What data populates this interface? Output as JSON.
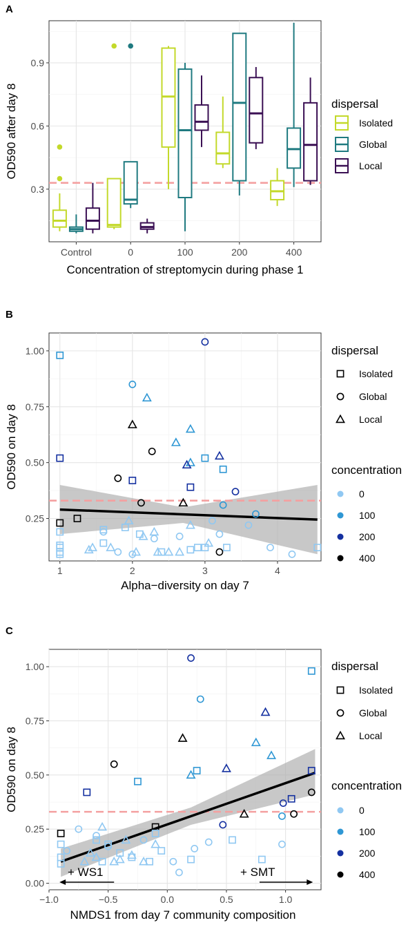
{
  "colors": {
    "dispersal": {
      "Isolated": "#c3d92a",
      "Global": "#1f7a80",
      "Local": "#3a0f53"
    },
    "concentration": {
      "0": "#90c8f2",
      "100": "#2f97d4",
      "200": "#1430a0",
      "400": "#000000"
    },
    "reference_line": "#f4a0a0",
    "ci_band": "#b0b0b0"
  },
  "chart_data": [
    {
      "panel": "A",
      "type": "box",
      "xlabel": "Concentration of streptomycin during phase 1",
      "ylabel": "OD590 after day 8",
      "categories": [
        "Control",
        "0",
        "100",
        "200",
        "400"
      ],
      "ylim": [
        0.05,
        1.1
      ],
      "yticks": [
        0.3,
        0.6,
        0.9
      ],
      "reference_line": 0.33,
      "legend": {
        "title": "dispersal",
        "items": [
          "Isolated",
          "Global",
          "Local"
        ]
      },
      "series": [
        {
          "name": "Isolated",
          "boxes": [
            {
              "category": "Control",
              "min": 0.1,
              "q1": 0.12,
              "median": 0.15,
              "q3": 0.2,
              "max": 0.28,
              "outliers": [
                0.35,
                0.5
              ]
            },
            {
              "category": "0",
              "min": 0.11,
              "q1": 0.12,
              "median": 0.13,
              "q3": 0.35,
              "max": 0.35,
              "outliers": [
                0.98
              ]
            },
            {
              "category": "100",
              "min": 0.3,
              "q1": 0.5,
              "median": 0.74,
              "q3": 0.97,
              "max": 0.98,
              "outliers": []
            },
            {
              "category": "200",
              "min": 0.4,
              "q1": 0.42,
              "median": 0.47,
              "q3": 0.57,
              "max": 0.74,
              "outliers": []
            },
            {
              "category": "400",
              "min": 0.22,
              "q1": 0.25,
              "median": 0.29,
              "q3": 0.34,
              "max": 0.4,
              "outliers": []
            }
          ]
        },
        {
          "name": "Global",
          "boxes": [
            {
              "category": "Control",
              "min": 0.09,
              "q1": 0.1,
              "median": 0.11,
              "q3": 0.12,
              "max": 0.18,
              "outliers": []
            },
            {
              "category": "0",
              "min": 0.21,
              "q1": 0.23,
              "median": 0.25,
              "q3": 0.43,
              "max": 0.43,
              "outliers": [
                0.98
              ]
            },
            {
              "category": "100",
              "min": 0.1,
              "q1": 0.26,
              "median": 0.58,
              "q3": 0.87,
              "max": 0.9,
              "outliers": []
            },
            {
              "category": "200",
              "min": 0.27,
              "q1": 0.34,
              "median": 0.71,
              "q3": 1.04,
              "max": 1.04,
              "outliers": []
            },
            {
              "category": "400",
              "min": 0.31,
              "q1": 0.4,
              "median": 0.49,
              "q3": 0.59,
              "max": 1.09,
              "outliers": []
            }
          ]
        },
        {
          "name": "Local",
          "boxes": [
            {
              "category": "Control",
              "min": 0.09,
              "q1": 0.11,
              "median": 0.15,
              "q3": 0.21,
              "max": 0.33,
              "outliers": []
            },
            {
              "category": "0",
              "min": 0.09,
              "q1": 0.11,
              "median": 0.12,
              "q3": 0.14,
              "max": 0.16,
              "outliers": []
            },
            {
              "category": "100",
              "min": 0.5,
              "q1": 0.58,
              "median": 0.62,
              "q3": 0.7,
              "max": 0.84,
              "outliers": []
            },
            {
              "category": "200",
              "min": 0.49,
              "q1": 0.52,
              "median": 0.66,
              "q3": 0.83,
              "max": 0.88,
              "outliers": []
            },
            {
              "category": "400",
              "min": 0.32,
              "q1": 0.34,
              "median": 0.51,
              "q3": 0.71,
              "max": 0.83,
              "outliers": []
            }
          ]
        }
      ]
    },
    {
      "panel": "B",
      "type": "scatter",
      "xlabel": "Alpha−diversity on day 7",
      "ylabel": "OD590 on day 8",
      "xlim": [
        0.85,
        4.6
      ],
      "ylim": [
        0.06,
        1.08
      ],
      "xticks": [
        1,
        2,
        3,
        4
      ],
      "yticks": [
        "0.25",
        "0.50",
        "0.75",
        "1.00"
      ],
      "reference_line": 0.33,
      "fit": {
        "x0": 1,
        "y0": 0.29,
        "x1": 4.55,
        "y1": 0.245,
        "ci": [
          [
            1,
            0.18,
            0.4
          ],
          [
            2.7,
            0.23,
            0.3
          ],
          [
            4.55,
            0.09,
            0.4
          ]
        ]
      },
      "legend_shape": {
        "title": "dispersal",
        "items": [
          "Isolated",
          "Global",
          "Local"
        ]
      },
      "legend_color": {
        "title": "concentration",
        "items": [
          "0",
          "100",
          "200",
          "400"
        ]
      },
      "points": [
        [
          1.0,
          0.98,
          "Isolated",
          "100"
        ],
        [
          1.0,
          0.52,
          "Isolated",
          "200"
        ],
        [
          1.0,
          0.23,
          "Isolated",
          "400"
        ],
        [
          1.24,
          0.25,
          "Isolated",
          "400"
        ],
        [
          1.0,
          0.1,
          "Isolated",
          "0"
        ],
        [
          1.0,
          0.12,
          "Isolated",
          "0"
        ],
        [
          1.0,
          0.19,
          "Isolated",
          "0"
        ],
        [
          1.0,
          0.13,
          "Isolated",
          "0"
        ],
        [
          1.0,
          0.09,
          "Isolated",
          "0"
        ],
        [
          1.6,
          0.14,
          "Isolated",
          "0"
        ],
        [
          1.6,
          0.2,
          "Isolated",
          "0"
        ],
        [
          1.9,
          0.21,
          "Isolated",
          "0"
        ],
        [
          2.0,
          0.42,
          "Isolated",
          "200"
        ],
        [
          2.1,
          0.18,
          "Isolated",
          "0"
        ],
        [
          2.4,
          0.1,
          "Isolated",
          "0"
        ],
        [
          2.8,
          0.39,
          "Isolated",
          "200"
        ],
        [
          2.8,
          0.11,
          "Isolated",
          "0"
        ],
        [
          3.0,
          0.52,
          "Isolated",
          "100"
        ],
        [
          3.25,
          0.47,
          "Isolated",
          "100"
        ],
        [
          3.0,
          0.12,
          "Isolated",
          "0"
        ],
        [
          3.3,
          0.12,
          "Isolated",
          "0"
        ],
        [
          4.55,
          0.12,
          "Isolated",
          "0"
        ],
        [
          2.9,
          0.12,
          "Isolated",
          "0"
        ],
        [
          1.8,
          0.43,
          "Global",
          "400"
        ],
        [
          2.0,
          0.85,
          "Global",
          "100"
        ],
        [
          2.12,
          0.32,
          "Global",
          "400"
        ],
        [
          2.27,
          0.55,
          "Global",
          "400"
        ],
        [
          3.0,
          1.04,
          "Global",
          "200"
        ],
        [
          3.42,
          0.37,
          "Global",
          "200"
        ],
        [
          3.7,
          0.27,
          "Global",
          "100"
        ],
        [
          3.25,
          0.31,
          "Global",
          "100"
        ],
        [
          3.1,
          0.24,
          "Global",
          "0"
        ],
        [
          3.6,
          0.22,
          "Global",
          "0"
        ],
        [
          1.6,
          0.19,
          "Global",
          "0"
        ],
        [
          1.8,
          0.1,
          "Global",
          "0"
        ],
        [
          2.0,
          0.09,
          "Global",
          "0"
        ],
        [
          2.3,
          0.16,
          "Global",
          "0"
        ],
        [
          2.65,
          0.17,
          "Global",
          "0"
        ],
        [
          3.2,
          0.18,
          "Global",
          "0"
        ],
        [
          3.9,
          0.12,
          "Global",
          "0"
        ],
        [
          4.2,
          0.09,
          "Global",
          "0"
        ],
        [
          3.2,
          0.1,
          "Global",
          "400"
        ],
        [
          2.0,
          0.67,
          "Local",
          "400"
        ],
        [
          2.2,
          0.79,
          "Local",
          "100"
        ],
        [
          2.6,
          0.59,
          "Local",
          "100"
        ],
        [
          2.8,
          0.65,
          "Local",
          "100"
        ],
        [
          2.8,
          0.5,
          "Local",
          "100"
        ],
        [
          2.75,
          0.49,
          "Local",
          "200"
        ],
        [
          3.2,
          0.53,
          "Local",
          "200"
        ],
        [
          2.7,
          0.32,
          "Local",
          "400"
        ],
        [
          1.4,
          0.11,
          "Local",
          "0"
        ],
        [
          1.45,
          0.12,
          "Local",
          "0"
        ],
        [
          1.7,
          0.12,
          "Local",
          "0"
        ],
        [
          2.05,
          0.1,
          "Local",
          "0"
        ],
        [
          2.15,
          0.17,
          "Local",
          "0"
        ],
        [
          2.3,
          0.19,
          "Local",
          "0"
        ],
        [
          2.35,
          0.1,
          "Local",
          "0"
        ],
        [
          2.5,
          0.1,
          "Local",
          "0"
        ],
        [
          2.65,
          0.1,
          "Local",
          "0"
        ],
        [
          2.8,
          0.22,
          "Local",
          "0"
        ],
        [
          3.05,
          0.14,
          "Local",
          "0"
        ],
        [
          1.95,
          0.24,
          "Local",
          "0"
        ]
      ]
    },
    {
      "panel": "C",
      "type": "scatter",
      "xlabel": "NMDS1 from day 7 community composition",
      "ylabel": "OD590 on day 8",
      "xlim": [
        -1.0,
        1.3
      ],
      "ylim": [
        -0.03,
        1.08
      ],
      "xticks": [
        "−1.0",
        "−0.5",
        "0.0",
        "0.5",
        "1.0"
      ],
      "xtick_values": [
        -1.0,
        -0.5,
        0.0,
        0.5,
        1.0
      ],
      "yticks": [
        "0.00",
        "0.25",
        "0.50",
        "0.75",
        "1.00"
      ],
      "reference_line": 0.33,
      "fit": {
        "x0": -0.9,
        "y0": 0.1,
        "x1": 1.25,
        "y1": 0.51,
        "ci": [
          [
            -0.9,
            0.03,
            0.16
          ],
          [
            0.2,
            0.27,
            0.35
          ],
          [
            1.25,
            0.41,
            0.62
          ]
        ]
      },
      "annotations": {
        "left": "+ WS1",
        "right": "+ SMT"
      },
      "legend_shape": {
        "title": "dispersal",
        "items": [
          "Isolated",
          "Global",
          "Local"
        ]
      },
      "legend_color": {
        "title": "concentration",
        "items": [
          "0",
          "100",
          "200",
          "400"
        ]
      },
      "points": [
        [
          1.22,
          0.98,
          "Isolated",
          "100"
        ],
        [
          1.22,
          0.52,
          "Isolated",
          "200"
        ],
        [
          1.05,
          0.39,
          "Isolated",
          "200"
        ],
        [
          -0.9,
          0.23,
          "Isolated",
          "400"
        ],
        [
          -0.68,
          0.42,
          "Isolated",
          "200"
        ],
        [
          -0.25,
          0.47,
          "Isolated",
          "100"
        ],
        [
          0.25,
          0.52,
          "Isolated",
          "100"
        ],
        [
          -0.1,
          0.26,
          "Isolated",
          "400"
        ],
        [
          -0.9,
          0.18,
          "Isolated",
          "0"
        ],
        [
          -0.9,
          0.12,
          "Isolated",
          "0"
        ],
        [
          -0.9,
          0.09,
          "Isolated",
          "0"
        ],
        [
          -0.6,
          0.2,
          "Isolated",
          "0"
        ],
        [
          -0.5,
          0.18,
          "Isolated",
          "0"
        ],
        [
          -0.55,
          0.1,
          "Isolated",
          "0"
        ],
        [
          -0.4,
          0.14,
          "Isolated",
          "0"
        ],
        [
          -0.3,
          0.12,
          "Isolated",
          "0"
        ],
        [
          -0.1,
          0.23,
          "Isolated",
          "0"
        ],
        [
          -0.05,
          0.15,
          "Isolated",
          "0"
        ],
        [
          0.2,
          0.11,
          "Isolated",
          "0"
        ],
        [
          0.55,
          0.2,
          "Isolated",
          "0"
        ],
        [
          0.8,
          0.11,
          "Isolated",
          "0"
        ],
        [
          -0.15,
          0.1,
          "Isolated",
          "0"
        ],
        [
          0.2,
          1.04,
          "Global",
          "200"
        ],
        [
          0.28,
          0.85,
          "Global",
          "100"
        ],
        [
          -0.45,
          0.55,
          "Global",
          "400"
        ],
        [
          1.22,
          0.42,
          "Global",
          "400"
        ],
        [
          0.98,
          0.37,
          "Global",
          "200"
        ],
        [
          0.47,
          0.27,
          "Global",
          "200"
        ],
        [
          1.07,
          0.32,
          "Global",
          "400"
        ],
        [
          0.97,
          0.31,
          "Global",
          "100"
        ],
        [
          -0.75,
          0.25,
          "Global",
          "0"
        ],
        [
          -0.6,
          0.22,
          "Global",
          "0"
        ],
        [
          -0.5,
          0.17,
          "Global",
          "0"
        ],
        [
          -0.2,
          0.2,
          "Global",
          "0"
        ],
        [
          0.05,
          0.1,
          "Global",
          "0"
        ],
        [
          0.23,
          0.16,
          "Global",
          "0"
        ],
        [
          0.35,
          0.19,
          "Global",
          "0"
        ],
        [
          0.97,
          0.18,
          "Global",
          "0"
        ],
        [
          -0.85,
          0.15,
          "Global",
          "0"
        ],
        [
          0.1,
          0.05,
          "Global",
          "0"
        ],
        [
          0.13,
          0.67,
          "Local",
          "400"
        ],
        [
          0.83,
          0.79,
          "Local",
          "200"
        ],
        [
          0.75,
          0.65,
          "Local",
          "100"
        ],
        [
          0.88,
          0.59,
          "Local",
          "100"
        ],
        [
          0.5,
          0.53,
          "Local",
          "200"
        ],
        [
          0.2,
          0.5,
          "Local",
          "100"
        ],
        [
          0.65,
          0.32,
          "Local",
          "400"
        ],
        [
          -0.55,
          0.26,
          "Local",
          "0"
        ],
        [
          -0.6,
          0.12,
          "Local",
          "0"
        ],
        [
          -0.7,
          0.1,
          "Local",
          "0"
        ],
        [
          -0.4,
          0.11,
          "Local",
          "0"
        ],
        [
          -0.35,
          0.2,
          "Local",
          "0"
        ],
        [
          -0.45,
          0.1,
          "Local",
          "0"
        ],
        [
          -0.2,
          0.1,
          "Local",
          "0"
        ],
        [
          -0.1,
          0.18,
          "Local",
          "0"
        ],
        [
          -0.65,
          0.14,
          "Local",
          "0"
        ],
        [
          -0.3,
          0.13,
          "Local",
          "0"
        ]
      ]
    }
  ]
}
